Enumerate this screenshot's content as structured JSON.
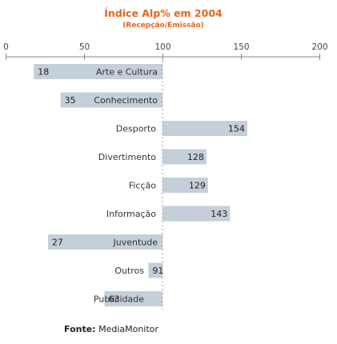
{
  "chart_data": {
    "type": "bar",
    "orientation": "horizontal",
    "title": "Índice Alp% em 2004",
    "subtitle": "(Recepção/Emissão)",
    "categories": [
      "Arte e Cultura",
      "Conhecimento",
      "Desporto",
      "Divertimento",
      "Ficção",
      "Informação",
      "Juventude",
      "Outros",
      "Publicidade"
    ],
    "values": [
      18,
      35,
      154,
      128,
      129,
      143,
      27,
      91,
      63
    ],
    "baseline": 100,
    "xlim": [
      0,
      200
    ],
    "xticks": [
      0,
      50,
      100,
      150,
      200
    ],
    "xaxis_position": "top",
    "grid": false,
    "colors": {
      "bar": "#c4cfd9",
      "title": "#e8641a",
      "axis": "#888888"
    }
  },
  "source": {
    "label": "Fonte:",
    "value": "MediaMonitor"
  }
}
